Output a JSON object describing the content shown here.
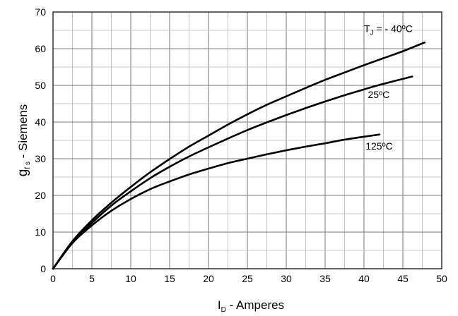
{
  "chart_data": {
    "type": "line",
    "xlabel": {
      "main": "I",
      "sub": "D",
      "rest": " - Amperes"
    },
    "ylabel": {
      "main": "g",
      "sub": "f s",
      "rest": " - Siemens"
    },
    "xlim": [
      0,
      50
    ],
    "ylim": [
      0,
      70
    ],
    "xticks": [
      0,
      5,
      10,
      15,
      20,
      25,
      30,
      35,
      40,
      45,
      50
    ],
    "yticks": [
      0,
      10,
      20,
      30,
      40,
      50,
      60,
      70
    ],
    "grid": true,
    "series": [
      {
        "name": "T_J = - 40ºC",
        "label": {
          "main": "T",
          "sub": "J",
          "rest": " = - 40ºC"
        },
        "x": [
          0,
          2.5,
          5,
          7.5,
          10,
          12.5,
          15,
          17.5,
          20,
          22.5,
          25,
          27.5,
          30,
          32.5,
          35,
          37.5,
          40,
          42.5,
          45,
          47.8
        ],
        "y": [
          0,
          7.5,
          13.2,
          18,
          22.3,
          26.3,
          29.9,
          33.3,
          36.3,
          39.3,
          42.1,
          44.7,
          47,
          49.3,
          51.5,
          53.5,
          55.5,
          57.4,
          59.3,
          61.7
        ]
      },
      {
        "name": "25ºC",
        "label": {
          "main": "25ºC",
          "sub": "",
          "rest": ""
        },
        "x": [
          0,
          2.5,
          5,
          7.5,
          10,
          12.5,
          15,
          17.5,
          20,
          22.5,
          25,
          27.5,
          30,
          32.5,
          35,
          37.5,
          40,
          42.5,
          46.2
        ],
        "y": [
          0,
          7.2,
          12.5,
          17.2,
          21.1,
          24.7,
          27.8,
          30.6,
          33.1,
          35.5,
          37.8,
          39.9,
          41.9,
          43.8,
          45.6,
          47.3,
          48.9,
          50.4,
          52.4
        ]
      },
      {
        "name": "125ºC",
        "label": {
          "main": "125ºC",
          "sub": "",
          "rest": ""
        },
        "x": [
          0,
          2.5,
          5,
          7.5,
          10,
          12.5,
          15,
          17.5,
          20,
          22.5,
          25,
          27.5,
          30,
          32.5,
          35,
          37.5,
          40,
          42
        ],
        "y": [
          0,
          7,
          11.8,
          15.8,
          19,
          21.7,
          23.8,
          25.7,
          27.3,
          28.8,
          30,
          31.2,
          32.3,
          33.3,
          34.2,
          35.2,
          36,
          36.6
        ]
      }
    ]
  }
}
